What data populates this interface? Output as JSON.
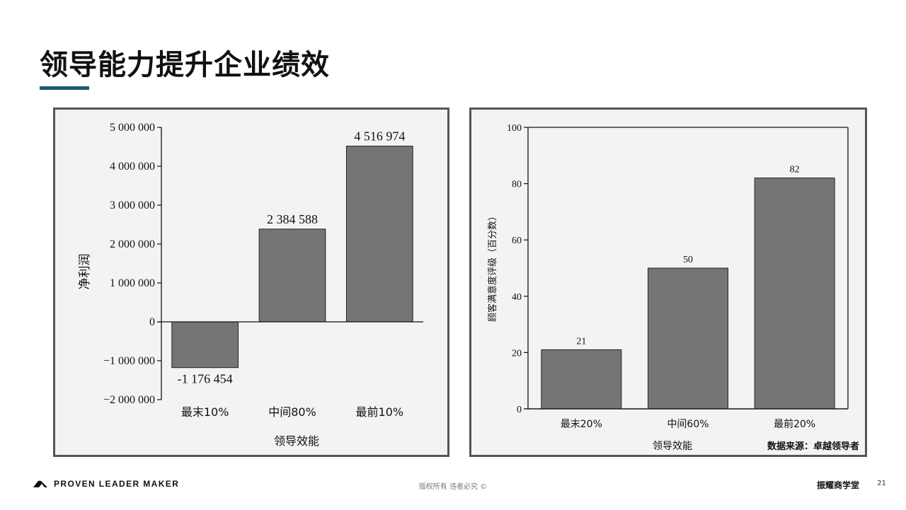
{
  "slide": {
    "title": "领导能力提升企业绩效",
    "footer_brand": "PROVEN LEADER MAKER",
    "footer_copyright": "版权所有 违者必究 ©",
    "footer_org": "振耀商学堂",
    "page_number": "21"
  },
  "colors": {
    "accent": "#1d5b6b",
    "bar": "#757575",
    "panel_border": "#555555"
  },
  "chart_data": [
    {
      "type": "bar",
      "categories": [
        "最末10%",
        "中间80%",
        "最前10%"
      ],
      "values": [
        -1176454,
        2384588,
        4516974
      ],
      "value_labels": [
        "-1 176 454",
        "2 384 588",
        "4 516 974"
      ],
      "xlabel": "领导效能",
      "ylabel": "净利润",
      "ylim": [
        -2000000,
        5000000
      ],
      "yticks": [
        -2000000,
        -1000000,
        0,
        1000000,
        2000000,
        3000000,
        4000000,
        5000000
      ],
      "ytick_labels": [
        "−2 000 000",
        "−1 000 000",
        "0",
        "1 000 000",
        "2 000 000",
        "3 000 000",
        "4 000 000",
        "5 000 000"
      ],
      "grid": false
    },
    {
      "type": "bar",
      "categories": [
        "最末20%",
        "中间60%",
        "最前20%"
      ],
      "values": [
        21,
        50,
        82
      ],
      "value_labels": [
        "21",
        "50",
        "82"
      ],
      "xlabel": "领导效能",
      "ylabel": "顾客满意度评级（百分数）",
      "ylim": [
        0,
        100
      ],
      "yticks": [
        0,
        20,
        40,
        60,
        80,
        100
      ],
      "ytick_labels": [
        "0",
        "20",
        "40",
        "60",
        "80",
        "100"
      ],
      "source": "数据来源：卓越领导者",
      "grid": false
    }
  ]
}
